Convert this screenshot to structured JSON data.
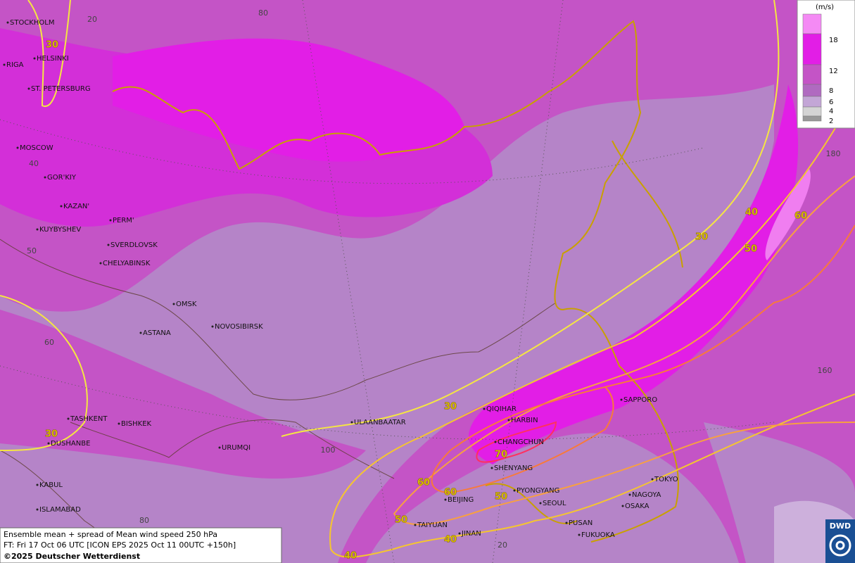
{
  "legend": {
    "unit": "(m/s)",
    "ticks": [
      18,
      12,
      8,
      6,
      4,
      2
    ]
  },
  "cities": [
    "STOCKHOLM",
    "HELSINKI",
    "RIGA",
    "ST. PETERSBURG",
    "MOSCOW",
    "GOR'KIY",
    "KAZAN'",
    "PERM'",
    "KUYBYSHEV",
    "SVERDLOVSK",
    "CHELYABINSK",
    "OMSK",
    "ASTANA",
    "NOVOSIBIRSK",
    "TASHKENT",
    "BISHKEK",
    "DUSHANBE",
    "KABUL",
    "ISLAMABAD",
    "URUMQI",
    "ULAANBAATAR",
    "QIQIHAR",
    "HARBIN",
    "CHANGCHUN",
    "SHENYANG",
    "BEIJING",
    "PYONGYANG",
    "SEOUL",
    "TAIYUAN",
    "JINAN",
    "PUSAN",
    "FUKUOKA",
    "SAPPORO",
    "TOKYO",
    "NAGOYA",
    "OSAKA"
  ],
  "graticule_labels": [
    "20",
    "80",
    "40",
    "50",
    "60",
    "100",
    "180",
    "160",
    "80",
    "20"
  ],
  "contour_labels": [
    30,
    30,
    30,
    30,
    40,
    40,
    40,
    50,
    50,
    50,
    60,
    60,
    60,
    70
  ],
  "footer": {
    "line1": "Ensemble mean + spread of Mean wind speed 250 hPa",
    "line2": "FT: Fri 17 Oct 06 UTC [ICON EPS 2025 Oct 11 00UTC +150h]",
    "copyright": "©2025 Deutscher Wetterdienst"
  },
  "logo": "DWD"
}
